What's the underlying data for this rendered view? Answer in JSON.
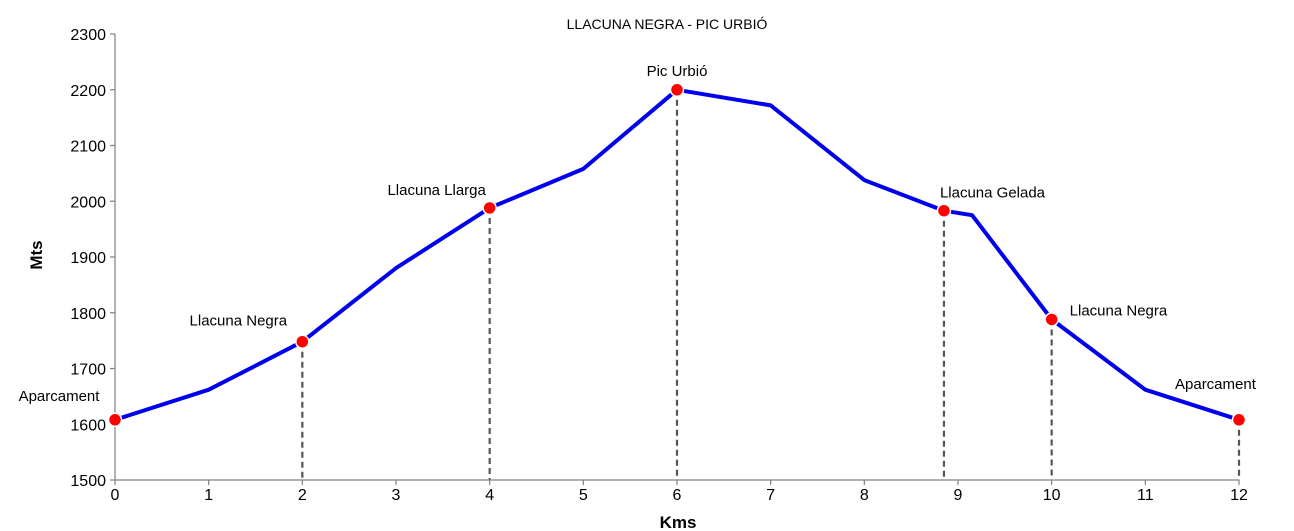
{
  "chart_data": {
    "type": "line",
    "title": "LLACUNA NEGRA - PIC URBIÓ",
    "xlabel": "Kms",
    "ylabel": "Mts",
    "xlim": [
      0,
      12
    ],
    "ylim": [
      1500,
      2300
    ],
    "x_ticks": [
      0,
      1,
      2,
      3,
      4,
      5,
      6,
      7,
      8,
      9,
      10,
      11,
      12
    ],
    "y_ticks": [
      1500,
      1600,
      1700,
      1800,
      1900,
      2000,
      2100,
      2200,
      2300
    ],
    "grid": false,
    "legend": "none",
    "series": [
      {
        "color": "#0000ee",
        "points": [
          [
            0,
            1608
          ],
          [
            1,
            1662
          ],
          [
            2,
            1748
          ],
          [
            3,
            1880
          ],
          [
            4,
            1988
          ],
          [
            5,
            2058
          ],
          [
            6,
            2200
          ],
          [
            7,
            2172
          ],
          [
            8,
            2038
          ],
          [
            8.85,
            1983
          ],
          [
            9.15,
            1975
          ],
          [
            10,
            1788
          ],
          [
            11,
            1662
          ],
          [
            12,
            1608
          ]
        ]
      }
    ],
    "waypoints": [
      {
        "label": "Aparcament",
        "x": 0,
        "y": 1608
      },
      {
        "label": "Llacuna Negra",
        "x": 2,
        "y": 1748
      },
      {
        "label": "Llacuna Llarga",
        "x": 4,
        "y": 1988
      },
      {
        "label": "Pic Urbió",
        "x": 6,
        "y": 2200
      },
      {
        "label": "Llacuna Gelada",
        "x": 8.85,
        "y": 1983
      },
      {
        "label": "Llacuna Negra",
        "x": 10,
        "y": 1788
      },
      {
        "label": "Aparcament",
        "x": 12,
        "y": 1608
      }
    ],
    "marker_color": "#ff0000",
    "dropline_color": "#555555"
  }
}
